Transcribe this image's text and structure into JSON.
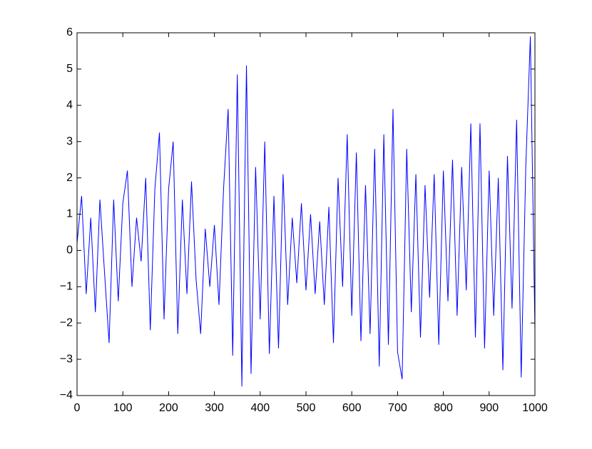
{
  "chart_data": {
    "type": "line",
    "x": [
      0,
      10,
      20,
      30,
      40,
      50,
      60,
      70,
      80,
      90,
      100,
      110,
      120,
      130,
      140,
      150,
      160,
      170,
      180,
      190,
      200,
      210,
      220,
      230,
      240,
      250,
      260,
      270,
      280,
      290,
      300,
      310,
      320,
      330,
      340,
      350,
      360,
      370,
      380,
      390,
      400,
      410,
      420,
      430,
      440,
      450,
      460,
      470,
      480,
      490,
      500,
      510,
      520,
      530,
      540,
      550,
      560,
      570,
      580,
      590,
      600,
      610,
      620,
      630,
      640,
      650,
      660,
      670,
      680,
      690,
      700,
      710,
      720,
      730,
      740,
      750,
      760,
      770,
      780,
      790,
      800,
      810,
      820,
      830,
      840,
      850,
      860,
      870,
      880,
      890,
      900,
      910,
      920,
      930,
      940,
      950,
      960,
      970,
      980,
      990,
      1000
    ],
    "series": [
      {
        "color": "#0000ff",
        "values": [
          0.2,
          1.5,
          -1.2,
          0.9,
          -1.7,
          1.4,
          -0.6,
          -2.55,
          1.4,
          -1.4,
          1.3,
          2.2,
          -1.0,
          0.9,
          -0.3,
          2.0,
          -2.2,
          1.7,
          3.25,
          -1.9,
          1.7,
          3.0,
          -2.3,
          1.4,
          -1.2,
          1.9,
          -0.8,
          -2.3,
          0.6,
          -1.0,
          0.7,
          -1.5,
          1.7,
          3.9,
          -2.9,
          4.85,
          -3.75,
          5.1,
          -3.4,
          2.3,
          -1.9,
          3.0,
          -2.85,
          1.5,
          -2.7,
          2.1,
          -1.5,
          0.9,
          -0.9,
          1.3,
          -1.1,
          1.0,
          -1.2,
          0.8,
          -1.5,
          1.2,
          -2.55,
          2.0,
          -1.0,
          3.2,
          -1.8,
          2.7,
          -2.5,
          1.8,
          -2.3,
          2.8,
          -3.2,
          3.2,
          -2.6,
          3.9,
          -2.8,
          -3.55,
          2.8,
          -1.7,
          2.1,
          -2.4,
          1.8,
          -1.3,
          2.1,
          -2.6,
          2.2,
          -1.4,
          2.5,
          -1.8,
          2.3,
          -1.1,
          3.5,
          -2.4,
          3.5,
          -2.7,
          2.2,
          -1.8,
          2.0,
          -3.3,
          2.6,
          -1.6,
          3.6,
          -3.5,
          2.3,
          5.9,
          -2.2
        ]
      }
    ],
    "xlim": [
      0,
      1000
    ],
    "xticks": [
      0,
      100,
      200,
      300,
      400,
      500,
      600,
      700,
      800,
      900,
      1000
    ],
    "ylim": [
      -4,
      6
    ],
    "yticks": [
      {
        "value": -4,
        "label": "−4"
      },
      {
        "value": -3,
        "label": "−3"
      },
      {
        "value": -2,
        "label": "−2"
      },
      {
        "value": -1,
        "label": "−1"
      },
      0,
      1,
      2,
      3,
      4,
      5,
      6
    ],
    "grid": false
  }
}
